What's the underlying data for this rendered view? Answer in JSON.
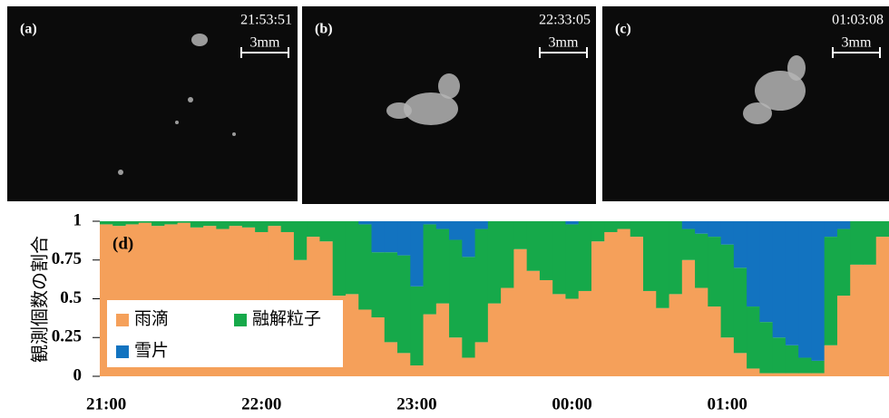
{
  "images": [
    {
      "label": "(a)",
      "time": "21:53:51",
      "scale": "3mm"
    },
    {
      "label": "(b)",
      "time": "22:33:05",
      "scale": "3mm"
    },
    {
      "label": "(c)",
      "time": "01:03:08",
      "scale": "3mm"
    }
  ],
  "chart_data": {
    "type": "stacked-bar",
    "label": "(d)",
    "y_label": "観測個数の割合",
    "categories": [
      "21:00",
      null,
      null,
      null,
      null,
      null,
      null,
      null,
      null,
      null,
      null,
      null,
      "22:00",
      null,
      null,
      null,
      null,
      null,
      null,
      null,
      null,
      null,
      null,
      null,
      "23:00",
      null,
      null,
      null,
      null,
      null,
      null,
      null,
      null,
      null,
      null,
      null,
      "00:00",
      null,
      null,
      null,
      null,
      null,
      null,
      null,
      null,
      null,
      null,
      null,
      "01:00",
      null,
      null,
      null,
      null,
      null,
      null,
      null,
      null,
      null,
      null,
      null,
      null
    ],
    "series": [
      {
        "name": "雨滴",
        "color": "#f5a05a",
        "values": [
          0.98,
          0.97,
          0.98,
          0.99,
          0.97,
          0.98,
          0.99,
          0.96,
          0.97,
          0.95,
          0.97,
          0.96,
          0.93,
          0.97,
          0.93,
          0.75,
          0.9,
          0.87,
          0.52,
          0.53,
          0.43,
          0.38,
          0.22,
          0.15,
          0.07,
          0.4,
          0.47,
          0.25,
          0.12,
          0.22,
          0.47,
          0.57,
          0.82,
          0.68,
          0.62,
          0.53,
          0.5,
          0.55,
          0.87,
          0.93,
          0.95,
          0.9,
          0.55,
          0.44,
          0.53,
          0.75,
          0.57,
          0.45,
          0.25,
          0.15,
          0.05,
          0.02,
          0.02,
          0.02,
          0.02,
          0.02,
          0.2,
          0.52,
          0.72,
          0.72,
          0.9
        ]
      },
      {
        "name": "融解粒子",
        "color": "#16a94a",
        "values": [
          0.02,
          0.03,
          0.02,
          0.01,
          0.03,
          0.02,
          0.01,
          0.04,
          0.03,
          0.05,
          0.03,
          0.04,
          0.07,
          0.03,
          0.07,
          0.25,
          0.1,
          0.13,
          0.48,
          0.47,
          0.55,
          0.42,
          0.58,
          0.63,
          0.51,
          0.58,
          0.48,
          0.63,
          0.65,
          0.73,
          0.53,
          0.43,
          0.18,
          0.32,
          0.38,
          0.47,
          0.48,
          0.45,
          0.13,
          0.07,
          0.05,
          0.1,
          0.45,
          0.56,
          0.47,
          0.2,
          0.35,
          0.45,
          0.6,
          0.55,
          0.4,
          0.33,
          0.23,
          0.18,
          0.1,
          0.08,
          0.7,
          0.43,
          0.28,
          0.28,
          0.1
        ]
      },
      {
        "name": "雪片",
        "color": "#1273c0",
        "values": [
          0,
          0,
          0,
          0,
          0,
          0,
          0,
          0,
          0,
          0,
          0,
          0,
          0,
          0,
          0,
          0,
          0,
          0,
          0,
          0,
          0.02,
          0.2,
          0.2,
          0.22,
          0.42,
          0.02,
          0.05,
          0.12,
          0.23,
          0.05,
          0,
          0,
          0,
          0,
          0,
          0,
          0.02,
          0,
          0,
          0,
          0,
          0,
          0,
          0,
          0,
          0.05,
          0.08,
          0.1,
          0.15,
          0.3,
          0.55,
          0.65,
          0.75,
          0.8,
          0.88,
          0.9,
          0.1,
          0.05,
          0,
          0,
          0
        ]
      }
    ],
    "ylim": [
      0,
      1
    ],
    "yticks": [
      0,
      0.25,
      0.5,
      0.75,
      1
    ],
    "legend": "lower-left"
  }
}
